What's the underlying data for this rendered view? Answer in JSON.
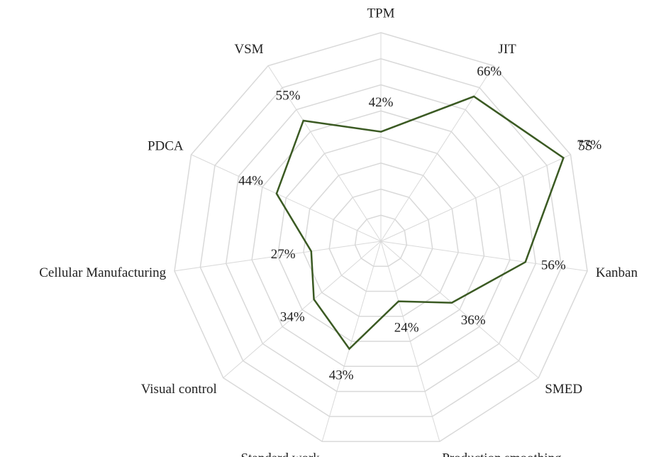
{
  "chart_data": {
    "type": "radar",
    "categories": [
      "TPM",
      "JIT",
      "5S",
      "Kanban",
      "SMED",
      "Production smoothing",
      "Standard work",
      "Visual control",
      "Cellular Manufacturing",
      "PDCA",
      "VSM"
    ],
    "series": [
      {
        "color": "#3b5a23",
        "values": [
          42,
          66,
          77,
          56,
          36,
          24,
          43,
          34,
          27,
          44,
          55
        ],
        "value_labels": [
          "42%",
          "66%",
          "77%",
          "56%",
          "36%",
          "24%",
          "43%",
          "34%",
          "27%",
          "44%",
          "55%"
        ]
      }
    ],
    "rlim": [
      0,
      80
    ],
    "rticks": [
      10,
      20,
      30,
      40,
      50,
      60,
      70,
      80
    ],
    "grid": true
  }
}
